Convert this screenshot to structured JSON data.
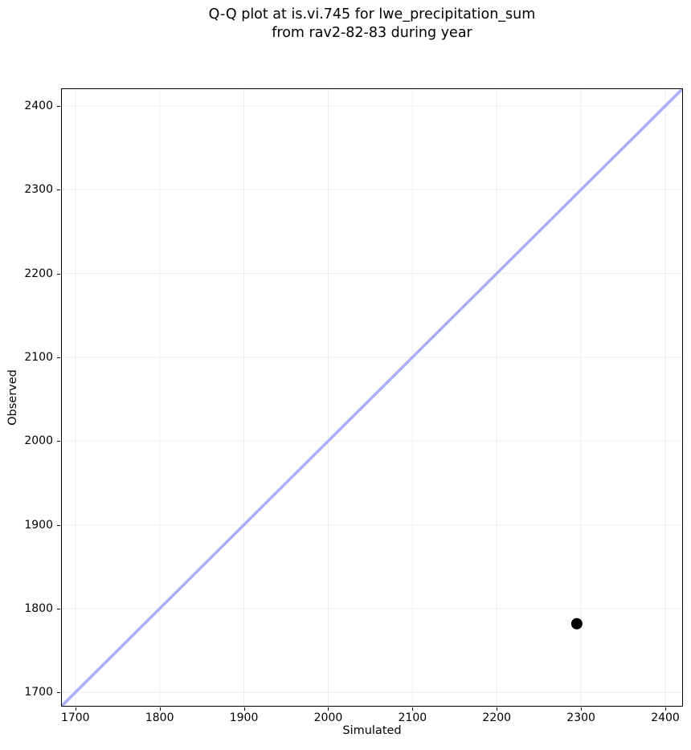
{
  "chart_data": {
    "type": "scatter",
    "title": "Q-Q plot at is.vi.745 for lwe_precipitation_sum\nfrom rav2-82-83 during year",
    "xlabel": "Simulated",
    "ylabel": "Observed",
    "xlim": [
      1684,
      2420
    ],
    "ylim": [
      1684,
      2420
    ],
    "xticks": [
      1700,
      1800,
      1900,
      2000,
      2100,
      2200,
      2300,
      2400
    ],
    "yticks": [
      1700,
      1800,
      1900,
      2000,
      2100,
      2200,
      2300,
      2400
    ],
    "grid": true,
    "legend": false,
    "points": [
      {
        "x": 2295,
        "y": 1782
      }
    ],
    "identity_line": {
      "x1": 1684,
      "y1": 1684,
      "x2": 2420,
      "y2": 2420
    },
    "colors": {
      "identity_line": "#a9aef6",
      "point": "#000000",
      "grid": "#ededed",
      "spine": "#000000"
    },
    "style": {
      "point_radius": 7,
      "line_width": 3.5
    }
  }
}
